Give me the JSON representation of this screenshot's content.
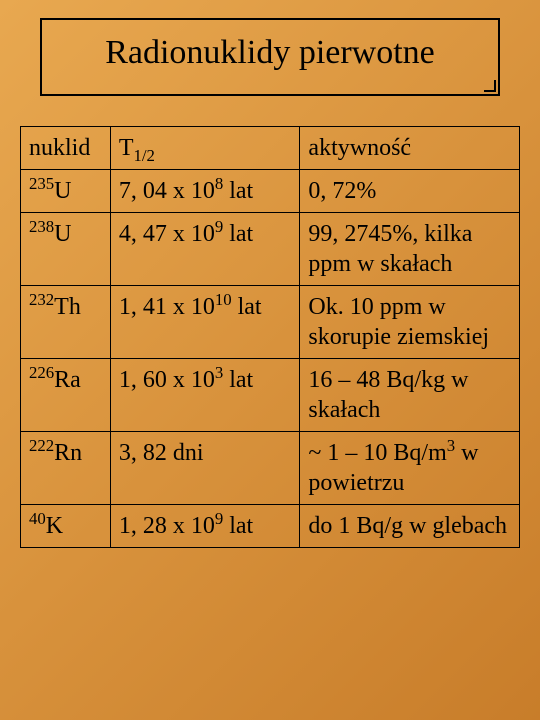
{
  "title": "Radionuklidy pierwotne",
  "background_gradient": [
    "#e8a850",
    "#d8923c",
    "#c87d2a"
  ],
  "border_color": "#000000",
  "text_color": "#000000",
  "font_family": "Times New Roman",
  "table": {
    "col_widths_pct": [
      18,
      38,
      44
    ],
    "header": {
      "c1": "nuklid",
      "c2_base": "T",
      "c2_sub": "1/2",
      "c3": "aktywność"
    },
    "rows": [
      {
        "nuklid_mass": "235",
        "nuklid_sym": "U",
        "t_prefix": "7, 04 x 10",
        "t_exp": "8",
        "t_suffix": " lat",
        "akt_html": "0, 72%"
      },
      {
        "nuklid_mass": "238",
        "nuklid_sym": "U",
        "t_prefix": "4, 47 x 10",
        "t_exp": "9",
        "t_suffix": " lat",
        "akt_html": "99, 2745%, kilka ppm w skałach"
      },
      {
        "nuklid_mass": "232",
        "nuklid_sym": "Th",
        "t_prefix": "1, 41 x 10",
        "t_exp": "10",
        "t_suffix": " lat",
        "akt_html": "Ok. 10 ppm w skorupie ziemskiej"
      },
      {
        "nuklid_mass": "226",
        "nuklid_sym": "Ra",
        "t_prefix": "1, 60 x 10",
        "t_exp": "3",
        "t_suffix": " lat",
        "akt_html": "16 – 48 Bq/kg w skałach"
      },
      {
        "nuklid_mass": "222",
        "nuklid_sym": "Rn",
        "t_plain": "3, 82 dni",
        "akt_html": "~ 1 – 10 Bq/m<sup>3</sup> w powietrzu"
      },
      {
        "nuklid_mass": "40",
        "nuklid_sym": "K",
        "t_prefix": "1, 28 x 10",
        "t_exp": "9",
        "t_suffix": " lat",
        "akt_html": "do 1 Bq/g w glebach"
      }
    ]
  }
}
